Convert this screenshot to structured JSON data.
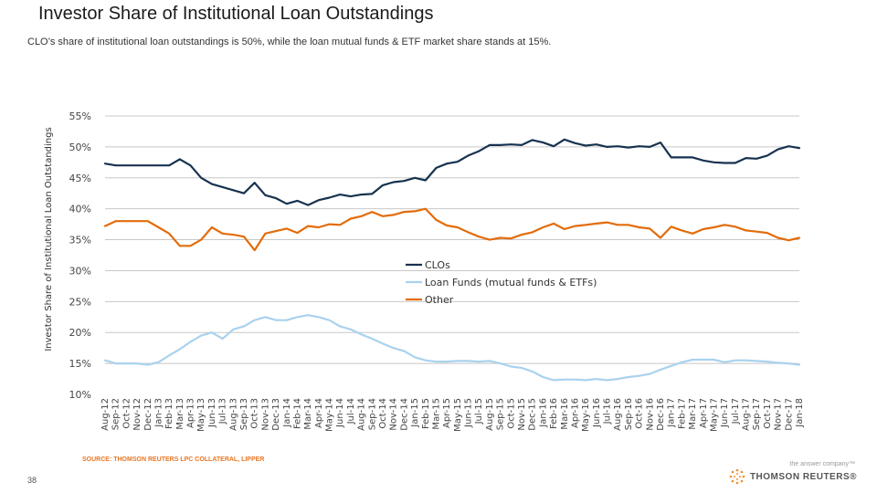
{
  "page": {
    "title": "Investor Share of Institutional Loan Outstandings",
    "subtitle": "CLO’s share of institutional loan outstandings is 50%, while the loan mutual funds & ETF market share stands at 15%.",
    "source": "SOURCE: THOMSON REUTERS LPC COLLATERAL, LIPPER",
    "page_number": "38",
    "brand_tagline": "the answer company™",
    "brand_name": "THOMSON REUTERS®"
  },
  "colors": {
    "clos": "#17324f",
    "loan_funds": "#a9d2ee",
    "other": "#e36c0a",
    "grid": "#c8c8c8",
    "axis_text": "#444444"
  },
  "chart_data": {
    "type": "line",
    "ylabel": "Investor Share of Institutional Loan Outstandings",
    "xlabel": "",
    "ylim": [
      10,
      55
    ],
    "yticks": [
      10,
      15,
      20,
      25,
      30,
      35,
      40,
      45,
      50,
      55
    ],
    "ytick_labels": [
      "10%",
      "15%",
      "20%",
      "25%",
      "30%",
      "35%",
      "40%",
      "45%",
      "50%",
      "55%"
    ],
    "grid": true,
    "legend_position": "center-right",
    "x": [
      "Aug-12",
      "Sep-12",
      "Oct-12",
      "Nov-12",
      "Dec-12",
      "Jan-13",
      "Feb-13",
      "Mar-13",
      "Apr-13",
      "May-13",
      "Jun-13",
      "Jul-13",
      "Aug-13",
      "Sep-13",
      "Oct-13",
      "Nov-13",
      "Dec-13",
      "Jan-14",
      "Feb-14",
      "Mar-14",
      "Apr-14",
      "May-14",
      "Jun-14",
      "Jul-14",
      "Aug-14",
      "Sep-14",
      "Oct-14",
      "Nov-14",
      "Dec-14",
      "Jan-15",
      "Feb-15",
      "Mar-15",
      "Apr-15",
      "May-15",
      "Jun-15",
      "Jul-15",
      "Aug-15",
      "Sep-15",
      "Oct-15",
      "Nov-15",
      "Dec-15",
      "Jan-16",
      "Feb-16",
      "Mar-16",
      "Apr-16",
      "May-16",
      "Jun-16",
      "Jul-16",
      "Aug-16",
      "Sep-16",
      "Oct-16",
      "Nov-16",
      "Dec-16",
      "Jan-17",
      "Feb-17",
      "Mar-17",
      "Apr-17",
      "May-17",
      "Jun-17",
      "Jul-17",
      "Aug-17",
      "Sep-17",
      "Oct-17",
      "Nov-17",
      "Dec-17",
      "Jan-18"
    ],
    "series": [
      {
        "name": "CLOs",
        "values": [
          47.3,
          47.0,
          47.0,
          47.0,
          47.0,
          47.0,
          47.0,
          48.0,
          47.0,
          45.0,
          44.0,
          43.5,
          43.0,
          42.5,
          44.2,
          42.2,
          41.7,
          40.8,
          41.3,
          40.6,
          41.4,
          41.8,
          42.3,
          42.0,
          42.3,
          42.4,
          43.8,
          44.3,
          44.5,
          45.0,
          44.6,
          46.6,
          47.3,
          47.6,
          48.6,
          49.3,
          50.3,
          50.3,
          50.4,
          50.3,
          51.1,
          50.7,
          50.1,
          51.2,
          50.6,
          50.2,
          50.4,
          50.0,
          50.1,
          49.9,
          50.1,
          50.0,
          50.7,
          48.3,
          48.3,
          48.3,
          47.8,
          47.5,
          47.4,
          47.4,
          48.2,
          48.1,
          48.6,
          49.6,
          50.1,
          49.8
        ]
      },
      {
        "name": "Loan Funds (mutual funds & ETFs)",
        "values": [
          15.5,
          15.0,
          15.0,
          15.0,
          14.8,
          15.2,
          16.3,
          17.3,
          18.5,
          19.5,
          20.0,
          19.0,
          20.5,
          21.0,
          22.0,
          22.5,
          22.0,
          22.0,
          22.5,
          22.8,
          22.5,
          22.0,
          21.0,
          20.5,
          19.7,
          19.0,
          18.2,
          17.5,
          17.0,
          16.0,
          15.5,
          15.3,
          15.3,
          15.4,
          15.4,
          15.3,
          15.4,
          15.0,
          14.5,
          14.3,
          13.7,
          12.8,
          12.3,
          12.4,
          12.4,
          12.3,
          12.5,
          12.3,
          12.5,
          12.8,
          13.0,
          13.3,
          14.0,
          14.6,
          15.2,
          15.6,
          15.6,
          15.6,
          15.2,
          15.5,
          15.5,
          15.4,
          15.3,
          15.1,
          15.0,
          14.8
        ]
      },
      {
        "name": "Other",
        "values": [
          37.2,
          38.0,
          38.0,
          38.0,
          38.0,
          37.0,
          36.0,
          34.0,
          34.0,
          35.0,
          37.0,
          36.0,
          35.8,
          35.5,
          33.3,
          36.0,
          36.4,
          36.8,
          36.1,
          37.2,
          37.0,
          37.5,
          37.4,
          38.4,
          38.8,
          39.5,
          38.8,
          39.0,
          39.5,
          39.6,
          40.0,
          38.2,
          37.3,
          37.0,
          36.2,
          35.5,
          35.0,
          35.3,
          35.2,
          35.8,
          36.2,
          37.0,
          37.6,
          36.7,
          37.2,
          37.4,
          37.6,
          37.8,
          37.4,
          37.4,
          37.0,
          36.8,
          35.3,
          37.1,
          36.5,
          36.0,
          36.7,
          37.0,
          37.4,
          37.1,
          36.5,
          36.3,
          36.1,
          35.3,
          34.9,
          35.3
        ]
      }
    ]
  }
}
